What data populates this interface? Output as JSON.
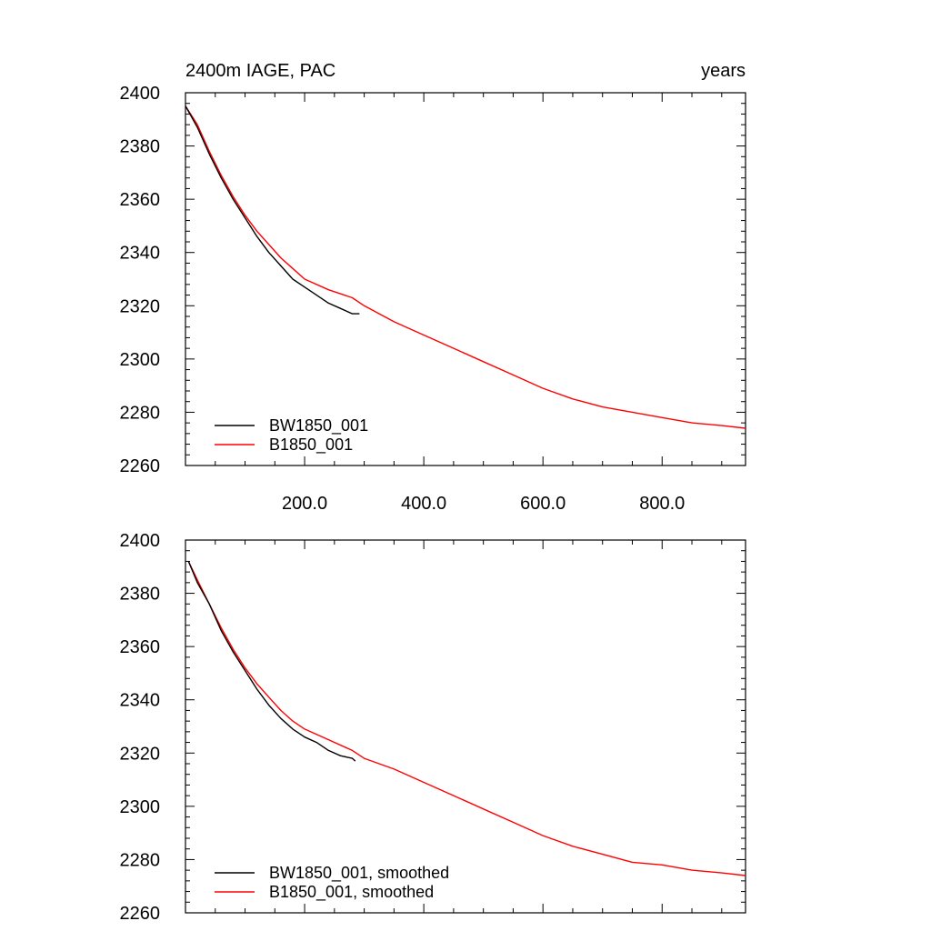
{
  "chart_data": [
    {
      "type": "line",
      "title": "2400m IAGE, PAC",
      "subtitle_right": "years",
      "xlabel": "",
      "ylabel": "",
      "xlim": [
        0,
        940
      ],
      "ylim": [
        2260,
        2400
      ],
      "x_ticks": [
        200,
        400,
        600,
        800
      ],
      "x_tick_labels": [
        "200.0",
        "400.0",
        "600.0",
        "800.0"
      ],
      "y_ticks": [
        2260,
        2280,
        2300,
        2320,
        2340,
        2360,
        2380,
        2400
      ],
      "y_tick_labels": [
        "2260",
        "2280",
        "2300",
        "2320",
        "2340",
        "2360",
        "2380",
        "2400"
      ],
      "legend_position": "bottom-left",
      "grid": false,
      "series": [
        {
          "name": "BW1850_001",
          "color": "#000000",
          "points": [
            [
              0,
              2395
            ],
            [
              20,
              2387
            ],
            [
              40,
              2377
            ],
            [
              60,
              2368
            ],
            [
              80,
              2360
            ],
            [
              100,
              2353
            ],
            [
              120,
              2346
            ],
            [
              140,
              2340
            ],
            [
              160,
              2335
            ],
            [
              180,
              2330
            ],
            [
              200,
              2327
            ],
            [
              220,
              2324
            ],
            [
              240,
              2321
            ],
            [
              260,
              2319
            ],
            [
              280,
              2317
            ],
            [
              292,
              2317
            ]
          ]
        },
        {
          "name": "B1850_001",
          "color": "#ff0000",
          "points": [
            [
              0,
              2395
            ],
            [
              20,
              2388
            ],
            [
              40,
              2378
            ],
            [
              60,
              2369
            ],
            [
              80,
              2361
            ],
            [
              100,
              2354
            ],
            [
              120,
              2348
            ],
            [
              140,
              2343
            ],
            [
              160,
              2338
            ],
            [
              180,
              2334
            ],
            [
              200,
              2330
            ],
            [
              240,
              2326
            ],
            [
              280,
              2323
            ],
            [
              300,
              2320
            ],
            [
              350,
              2314
            ],
            [
              400,
              2309
            ],
            [
              450,
              2304
            ],
            [
              500,
              2299
            ],
            [
              550,
              2294
            ],
            [
              600,
              2289
            ],
            [
              650,
              2285
            ],
            [
              700,
              2282
            ],
            [
              750,
              2280
            ],
            [
              800,
              2278
            ],
            [
              850,
              2276
            ],
            [
              900,
              2275
            ],
            [
              940,
              2274
            ]
          ]
        }
      ]
    },
    {
      "type": "line",
      "title": "",
      "xlabel": "",
      "ylabel": "",
      "xlim": [
        0,
        940
      ],
      "ylim": [
        2260,
        2400
      ],
      "x_ticks": [
        200,
        400,
        600,
        800
      ],
      "y_ticks": [
        2260,
        2280,
        2300,
        2320,
        2340,
        2360,
        2380,
        2400
      ],
      "y_tick_labels": [
        "2260",
        "2280",
        "2300",
        "2320",
        "2340",
        "2360",
        "2380",
        "2400"
      ],
      "legend_position": "bottom-left",
      "grid": false,
      "series": [
        {
          "name": "BW1850_001, smoothed",
          "color": "#000000",
          "points": [
            [
              5,
              2392
            ],
            [
              20,
              2384
            ],
            [
              40,
              2376
            ],
            [
              60,
              2366
            ],
            [
              80,
              2358
            ],
            [
              100,
              2351
            ],
            [
              120,
              2344
            ],
            [
              140,
              2338
            ],
            [
              160,
              2333
            ],
            [
              180,
              2329
            ],
            [
              200,
              2326
            ],
            [
              220,
              2324
            ],
            [
              240,
              2321
            ],
            [
              260,
              2319
            ],
            [
              280,
              2318
            ],
            [
              285,
              2317
            ]
          ]
        },
        {
          "name": "B1850_001, smoothed",
          "color": "#ff0000",
          "points": [
            [
              5,
              2392
            ],
            [
              20,
              2385
            ],
            [
              40,
              2376
            ],
            [
              60,
              2367
            ],
            [
              80,
              2359
            ],
            [
              100,
              2352
            ],
            [
              120,
              2346
            ],
            [
              140,
              2341
            ],
            [
              160,
              2336
            ],
            [
              180,
              2332
            ],
            [
              200,
              2329
            ],
            [
              240,
              2325
            ],
            [
              280,
              2321
            ],
            [
              300,
              2318
            ],
            [
              350,
              2314
            ],
            [
              400,
              2309
            ],
            [
              450,
              2304
            ],
            [
              500,
              2299
            ],
            [
              550,
              2294
            ],
            [
              600,
              2289
            ],
            [
              650,
              2285
            ],
            [
              700,
              2282
            ],
            [
              750,
              2279
            ],
            [
              800,
              2278
            ],
            [
              850,
              2276
            ],
            [
              900,
              2275
            ],
            [
              940,
              2274
            ]
          ]
        }
      ]
    }
  ]
}
